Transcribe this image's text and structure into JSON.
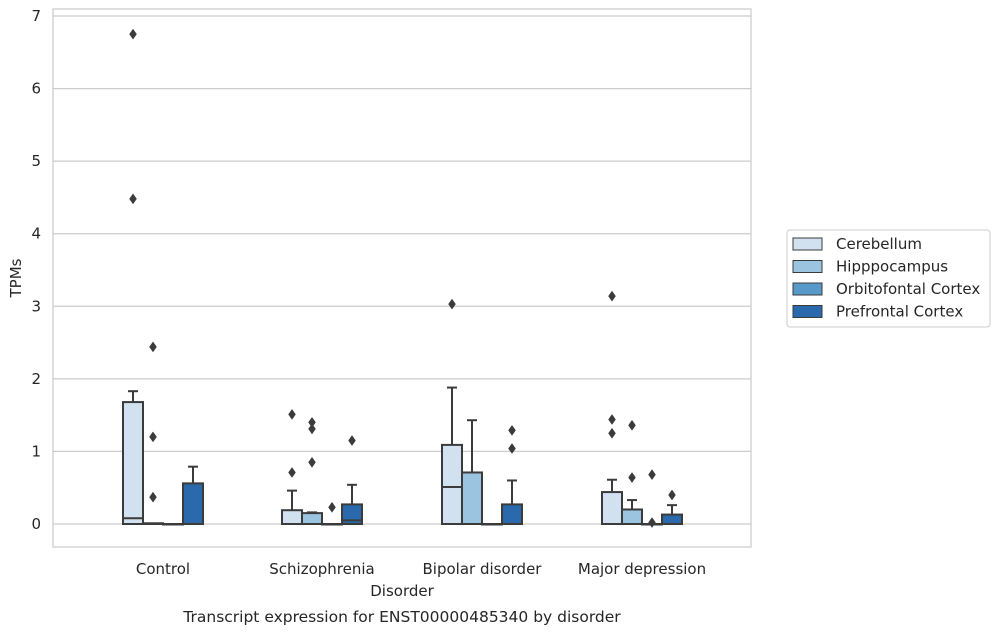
{
  "chart_data": {
    "type": "box",
    "title": "Transcript expression for ENST00000485340 by disorder",
    "xlabel": "Disorder",
    "ylabel": "TPMs",
    "ylim": [
      -0.32,
      7.1
    ],
    "yticks": [
      0,
      1,
      2,
      3,
      4,
      5,
      6,
      7
    ],
    "grid": "horizontal",
    "legend_position": "right",
    "categories": [
      "Control",
      "Schizophrenia",
      "Bipolar disorder",
      "Major depression"
    ],
    "series": [
      {
        "name": "Cerebellum",
        "color": "#d2e1f0",
        "boxes": [
          {
            "q1": 0,
            "median": 0.08,
            "q3": 1.68,
            "whisker_low": 0,
            "whisker_high": 1.83,
            "outliers": [
              6.75,
              4.48
            ]
          },
          {
            "q1": 0,
            "median": 0,
            "q3": 0.19,
            "whisker_low": 0,
            "whisker_high": 0.46,
            "outliers": [
              1.51,
              0.71
            ]
          },
          {
            "q1": 0,
            "median": 0.51,
            "q3": 1.09,
            "whisker_low": 0,
            "whisker_high": 1.88,
            "outliers": [
              3.03
            ]
          },
          {
            "q1": 0,
            "median": 0,
            "q3": 0.44,
            "whisker_low": 0,
            "whisker_high": 0.61,
            "outliers": [
              3.14,
              1.44,
              1.25
            ]
          }
        ]
      },
      {
        "name": "Hipppocampus",
        "color": "#9ac4e0",
        "boxes": [
          {
            "q1": 0,
            "median": 0,
            "q3": 0.01,
            "whisker_low": 0,
            "whisker_high": 0.01,
            "outliers": [
              2.44,
              1.2,
              0.37
            ]
          },
          {
            "q1": 0,
            "median": 0,
            "q3": 0.15,
            "whisker_low": 0,
            "whisker_high": 0.16,
            "outliers": [
              1.4,
              1.31,
              0.85
            ]
          },
          {
            "q1": 0,
            "median": 0,
            "q3": 0.71,
            "whisker_low": 0,
            "whisker_high": 1.43,
            "outliers": []
          },
          {
            "q1": 0,
            "median": 0,
            "q3": 0.2,
            "whisker_low": 0,
            "whisker_high": 0.33,
            "outliers": [
              1.36,
              0.64
            ]
          }
        ]
      },
      {
        "name": "Orbitofontal Cortex",
        "color": "#5799c8",
        "boxes": [
          {
            "q1": 0,
            "median": 0,
            "q3": 0,
            "whisker_low": 0,
            "whisker_high": 0,
            "outliers": []
          },
          {
            "q1": 0,
            "median": 0,
            "q3": 0,
            "whisker_low": 0,
            "whisker_high": 0,
            "outliers": [
              0.23
            ]
          },
          {
            "q1": 0,
            "median": 0,
            "q3": 0,
            "whisker_low": 0,
            "whisker_high": 0,
            "outliers": []
          },
          {
            "q1": 0,
            "median": 0,
            "q3": 0,
            "whisker_low": 0,
            "whisker_high": 0,
            "outliers": [
              0.68,
              0.02
            ]
          }
        ]
      },
      {
        "name": "Prefrontal Cortex",
        "color": "#2a6aac",
        "boxes": [
          {
            "q1": 0,
            "median": 0,
            "q3": 0.56,
            "whisker_low": 0,
            "whisker_high": 0.79,
            "outliers": []
          },
          {
            "q1": 0,
            "median": 0.05,
            "q3": 0.27,
            "whisker_low": 0,
            "whisker_high": 0.54,
            "outliers": [
              1.15
            ]
          },
          {
            "q1": 0,
            "median": 0,
            "q3": 0.27,
            "whisker_low": 0,
            "whisker_high": 0.6,
            "outliers": [
              1.29,
              1.04
            ]
          },
          {
            "q1": 0,
            "median": 0,
            "q3": 0.13,
            "whisker_low": 0,
            "whisker_high": 0.26,
            "outliers": [
              0.4
            ]
          }
        ]
      }
    ]
  }
}
